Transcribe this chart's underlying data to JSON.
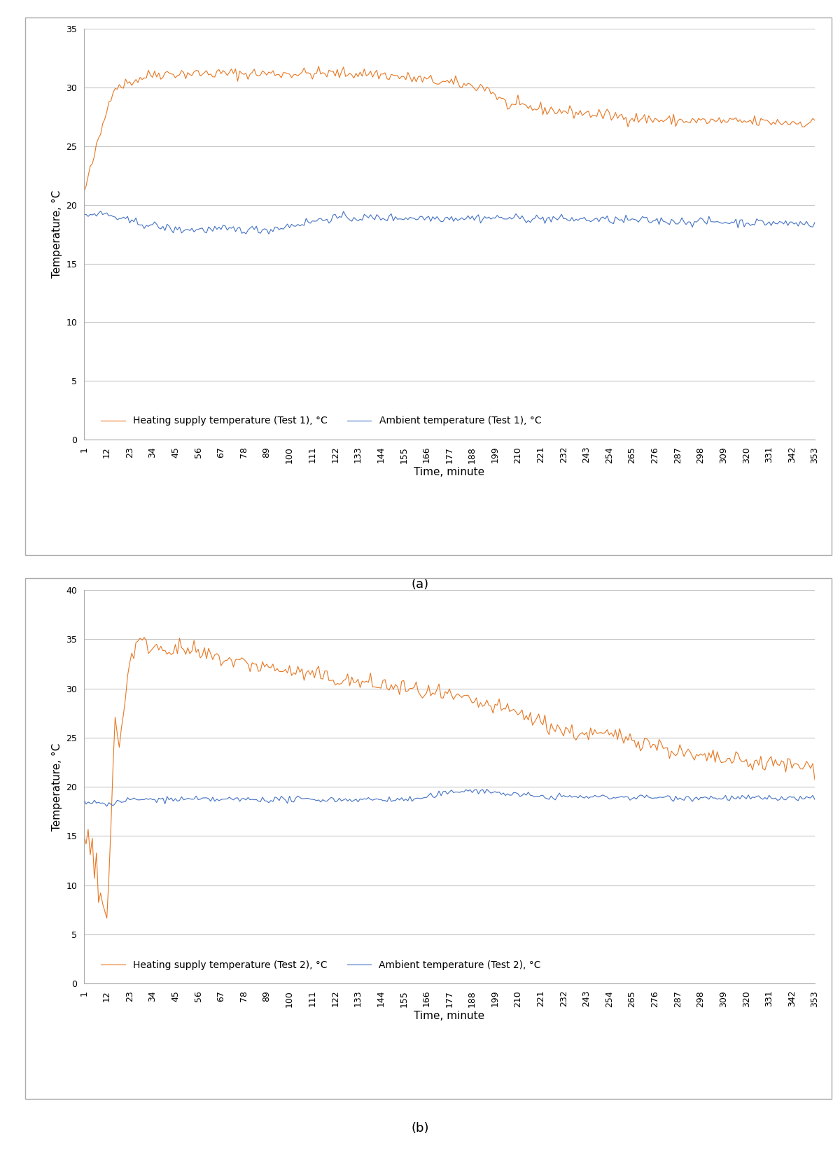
{
  "fig_width": 12.0,
  "fig_height": 16.53,
  "dpi": 100,
  "background_color": "#ffffff",
  "subplot_a": {
    "ylim": [
      0,
      35
    ],
    "yticks": [
      0,
      5,
      10,
      15,
      20,
      25,
      30,
      35
    ],
    "ylabel": "Temperature, °C",
    "xlabel": "Time, minute",
    "orange_color": "#E87722",
    "blue_color": "#4472C4",
    "legend_labels": [
      "Heating supply temperature (Test 1), °C",
      "Ambient temperature (Test 1), °C"
    ],
    "label_a": "(a)"
  },
  "subplot_b": {
    "ylim": [
      0,
      40
    ],
    "yticks": [
      0,
      5,
      10,
      15,
      20,
      25,
      30,
      35,
      40
    ],
    "ylabel": "Temperature, °C",
    "xlabel": "Time, minute",
    "orange_color": "#E87722",
    "blue_color": "#4472C4",
    "legend_labels": [
      "Heating supply temperature (Test 2), °C",
      "Ambient temperature (Test 2), °C"
    ],
    "label_b": "(b)"
  },
  "n_points": 353,
  "xtick_positions": [
    1,
    12,
    23,
    34,
    45,
    56,
    67,
    78,
    89,
    100,
    111,
    122,
    133,
    144,
    155,
    166,
    177,
    188,
    199,
    210,
    221,
    232,
    243,
    254,
    265,
    276,
    287,
    298,
    309,
    320,
    331,
    342,
    353
  ],
  "xtick_labels": [
    "1",
    "12",
    "23",
    "34",
    "45",
    "56",
    "67",
    "78",
    "89",
    "100",
    "111",
    "122",
    "133",
    "144",
    "155",
    "166",
    "177",
    "188",
    "199",
    "210",
    "221",
    "232",
    "243",
    "254",
    "265",
    "276",
    "287",
    "298",
    "309",
    "320",
    "331",
    "342",
    "353"
  ],
  "border_color": "#aaaaaa",
  "grid_color": "#C8C8C8",
  "legend_fontsize": 10,
  "axis_label_fontsize": 11,
  "tick_fontsize": 9,
  "label_fontsize": 13
}
